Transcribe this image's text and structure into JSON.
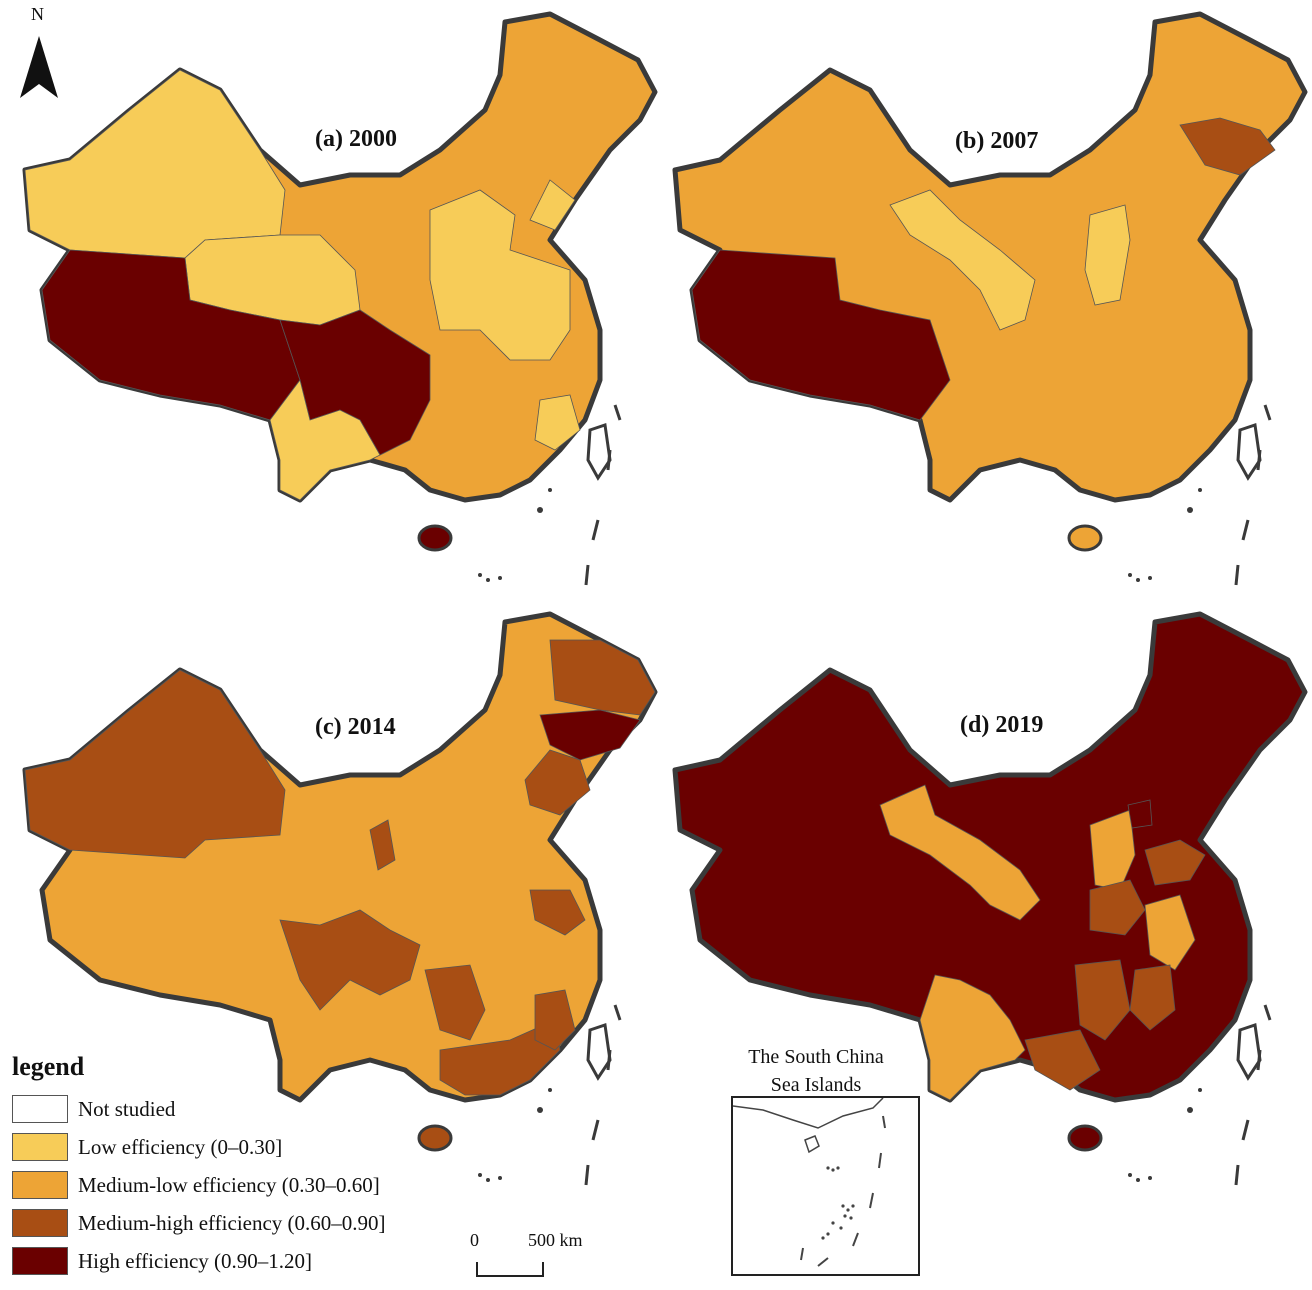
{
  "north_arrow": {
    "label": "N"
  },
  "panels": [
    {
      "id": "a",
      "title": "(a) 2000"
    },
    {
      "id": "b",
      "title": "(b) 2007"
    },
    {
      "id": "c",
      "title": "(c) 2014"
    },
    {
      "id": "d",
      "title": "(d) 2019"
    }
  ],
  "legend": {
    "title": "legend",
    "items": [
      {
        "label": "Not studied",
        "color": "#ffffff"
      },
      {
        "label": "Low efficiency (0–0.30]",
        "color": "#f7cc58"
      },
      {
        "label": "Medium-low efficiency (0.30–0.60]",
        "color": "#eda436"
      },
      {
        "label": "Medium-high efficiency (0.60–0.90]",
        "color": "#a84e14"
      },
      {
        "label": "High efficiency (0.90–1.20]",
        "color": "#6a0000"
      }
    ]
  },
  "scale_bar": {
    "zero": "0",
    "distance": "500 km"
  },
  "inset": {
    "title_line1": "The South China",
    "title_line2": "Sea Islands"
  },
  "colors": {
    "low": "#f7cc58",
    "medium_low": "#eda436",
    "medium_high": "#a84e14",
    "high": "#6a0000",
    "border": "#3a3a3a"
  }
}
